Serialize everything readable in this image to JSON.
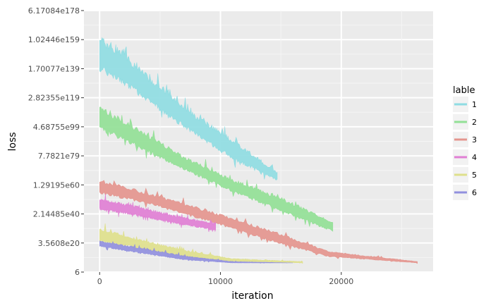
{
  "chart_data": {
    "type": "line",
    "title": "",
    "xlabel": "iteration",
    "ylabel": "loss",
    "x_ticks": [
      0,
      10000,
      20000
    ],
    "x_tick_labels": [
      "0",
      "10000",
      "20000"
    ],
    "xlim": [
      -1300,
      27600
    ],
    "y_scale": "log",
    "y_tick_labels": [
      "6",
      "3.5608e20",
      "2.14485e40",
      "1.29195e60",
      "7.7821e79",
      "4.68755e99",
      "2.82355e119",
      "1.70077e139",
      "1.02446e159",
      "6.17084e178"
    ],
    "ylim_log10": [
      0.778,
      178.79
    ],
    "grid": true,
    "background": "#EBEBEB",
    "legend": {
      "title": "lable",
      "position": "right",
      "entries": [
        "1",
        "2",
        "3",
        "4",
        "5",
        "6"
      ]
    },
    "series": [
      {
        "name": "4",
        "color": "#8FDCE2",
        "x_end": 14700,
        "band_log10": {
          "x": [
            0,
            2000,
            5000,
            8000,
            11000,
            14700
          ],
          "high": [
            162,
            150,
            128,
            108,
            92,
            69
          ],
          "low": [
            137,
            128,
            110,
            93,
            77,
            63
          ]
        }
      },
      {
        "name": "3",
        "color": "#93E096",
        "x_end": 19300,
        "band_log10": {
          "x": [
            0,
            3000,
            7000,
            11000,
            15000,
            19300
          ],
          "high": [
            114,
            100,
            80,
            64,
            52,
            35
          ],
          "low": [
            97,
            86,
            70,
            55,
            42,
            28
          ]
        }
      },
      {
        "name": "1",
        "color": "#E4958E",
        "x_end": 26300,
        "band_log10": {
          "x": [
            0,
            4000,
            9000,
            14000,
            19000,
            26300
          ],
          "high": [
            64,
            55,
            43,
            30,
            15,
            8
          ],
          "low": [
            54,
            47,
            35,
            22,
            11,
            7
          ]
        }
      },
      {
        "name": "6",
        "color": "#E07FD4",
        "x_end": 9600,
        "band_log10": {
          "x": [
            0,
            3000,
            6000,
            9600
          ],
          "high": [
            51,
            46,
            40,
            34
          ],
          "low": [
            43,
            39,
            34,
            29
          ]
        }
      },
      {
        "name": "2",
        "color": "#DEE08C",
        "x_end": 16800,
        "band_log10": {
          "x": [
            0,
            3000,
            7000,
            11000,
            16800
          ],
          "high": [
            31,
            24,
            16,
            10,
            8
          ],
          "low": [
            21,
            17,
            11,
            8,
            7
          ]
        }
      },
      {
        "name": "5",
        "color": "#9190DE",
        "x_end": 16000,
        "band_log10": {
          "x": [
            0,
            3000,
            7000,
            11000,
            16000
          ],
          "high": [
            22,
            18,
            12,
            8,
            7
          ],
          "low": [
            18,
            14,
            9,
            7,
            7
          ]
        }
      }
    ]
  }
}
